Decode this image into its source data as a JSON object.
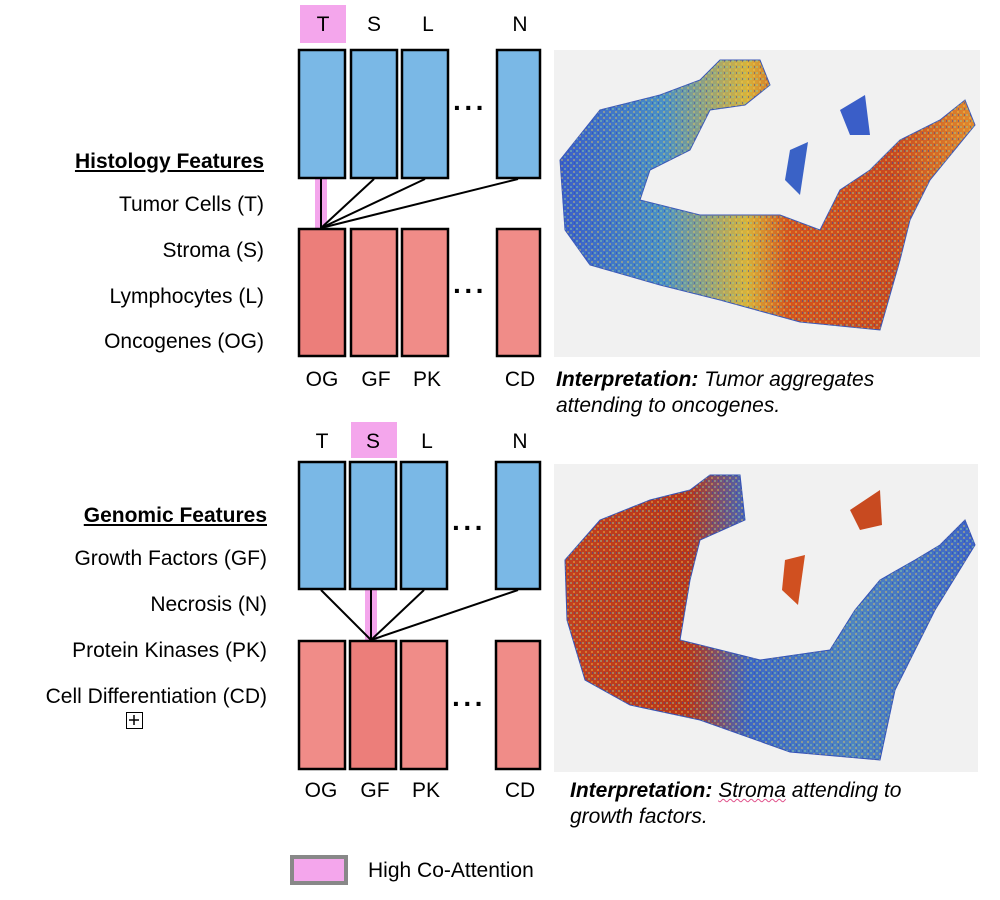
{
  "colors": {
    "histology_box": "#7ab8e6",
    "genomic_box": "#f08c88",
    "genomic_box_attended": "#ec7e7a",
    "co_attention": "#f4a6ec",
    "heatmap_high": "#d64a1e",
    "heatmap_low": "#2f5ec8"
  },
  "left_labels": {
    "histology_heading": "Histology Features",
    "tumor": "Tumor Cells (T)",
    "stroma": "Stroma (S)",
    "lymph": "Lymphocytes (L)",
    "oncogenes": "Oncogenes (OG)",
    "genomic_heading": "Genomic Features",
    "growth": "Growth Factors (GF)",
    "necrosis": "Necrosis (N)",
    "kinases": "Protein Kinases (PK)",
    "differentiation": "Cell Differentiation (CD)"
  },
  "panel_top": {
    "hist_tokens": [
      "T",
      "S",
      "L",
      "N"
    ],
    "gen_tokens": [
      "OG",
      "GF",
      "PK",
      "CD"
    ],
    "ellipsis": "···",
    "highlighted_token": "T",
    "interp_label": "Interpretation:",
    "interp_text_line1": "Tumor aggregates",
    "interp_text_line2": "attending to oncogenes."
  },
  "panel_bottom": {
    "hist_tokens": [
      "T",
      "S",
      "L",
      "N"
    ],
    "gen_tokens": [
      "OG",
      "GF",
      "PK",
      "CD"
    ],
    "ellipsis": "···",
    "highlighted_token": "S",
    "interp_label": "Interpretation:",
    "interp_word1": "Stroma",
    "interp_text_line1_rest": " attending to",
    "interp_text_line2": "growth factors."
  },
  "legend": {
    "label": "High Co-Attention"
  }
}
